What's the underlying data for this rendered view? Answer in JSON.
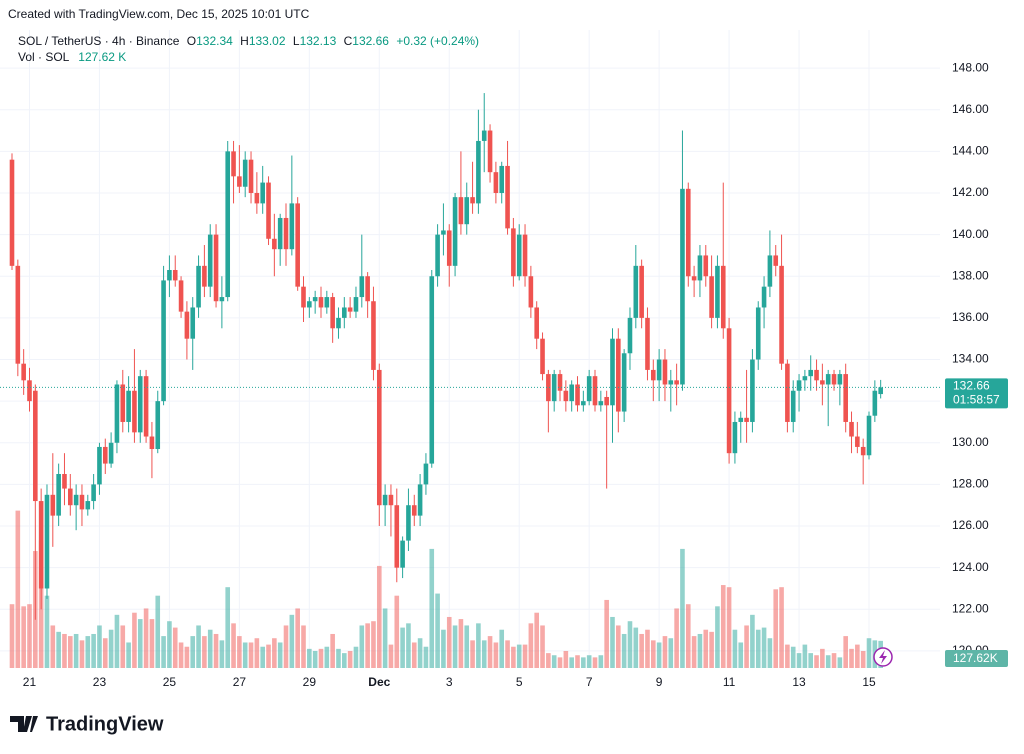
{
  "header": {
    "watermark": "Created with TradingView.com, Dec 15, 2025 10:01 UTC"
  },
  "chart_data": {
    "type": "candlestick",
    "legend": {
      "symbol": "SOL / TetherUS · 4h · Binance",
      "letters": [
        "O",
        "H",
        "L",
        "C"
      ],
      "change": "+0.32 (+0.24%)",
      "volume_title": "Vol · SOL",
      "volume_value": "127.62 K"
    },
    "categories": [
      null,
      null,
      null,
      "21",
      null,
      null,
      null,
      null,
      null,
      null,
      null,
      null,
      null,
      null,
      null,
      "23",
      null,
      null,
      null,
      null,
      null,
      null,
      null,
      null,
      null,
      null,
      null,
      "25",
      null,
      null,
      null,
      null,
      null,
      null,
      null,
      null,
      null,
      null,
      null,
      "27",
      null,
      null,
      null,
      null,
      null,
      null,
      null,
      null,
      null,
      null,
      null,
      "29",
      null,
      null,
      null,
      null,
      null,
      null,
      null,
      null,
      null,
      null,
      null,
      "Dec",
      null,
      null,
      null,
      null,
      null,
      null,
      null,
      null,
      null,
      null,
      null,
      "3",
      null,
      null,
      null,
      null,
      null,
      null,
      null,
      null,
      null,
      null,
      null,
      "5",
      null,
      null,
      null,
      null,
      null,
      null,
      null,
      null,
      null,
      null,
      null,
      "7",
      null,
      null,
      null,
      null,
      null,
      null,
      null,
      null,
      null,
      null,
      null,
      "9",
      null,
      null,
      null,
      null,
      null,
      null,
      null,
      null,
      null,
      null,
      null,
      "11",
      null,
      null,
      null,
      null,
      null,
      null,
      null,
      null,
      null,
      null,
      null,
      "13",
      null,
      null,
      null,
      null,
      null,
      null,
      null,
      null,
      null,
      null,
      null,
      "15",
      null,
      null
    ],
    "open": [
      143.6,
      138.5,
      133.8,
      133.0,
      132.5,
      127.2,
      123.0,
      127.5,
      126.5,
      128.5,
      127.8,
      127.0,
      127.5,
      126.8,
      127.2,
      128.0,
      129.8,
      129.0,
      130.0,
      132.8,
      131.0,
      132.5,
      130.5,
      133.2,
      130.3,
      129.7,
      132.0,
      137.8,
      138.3,
      137.8,
      136.3,
      135.0,
      136.5,
      138.5,
      137.5,
      140.0,
      136.8,
      137.0,
      144.0,
      142.8,
      142.3,
      143.6,
      142.0,
      141.5,
      142.5,
      139.8,
      139.3,
      140.8,
      139.3,
      141.5,
      137.5,
      136.5,
      136.8,
      137.0,
      136.5,
      137.0,
      135.5,
      136.0,
      136.5,
      136.3,
      137.0,
      138.0,
      136.8,
      133.5,
      127.0,
      127.5,
      127.0,
      124.0,
      125.3,
      127.0,
      126.5,
      128.0,
      129.0,
      138.0,
      140.0,
      140.2,
      138.5,
      141.8,
      140.5,
      141.8,
      141.5,
      144.5,
      145.0,
      143.0,
      142.0,
      143.3,
      140.3,
      138.0,
      140.0,
      138.0,
      136.5,
      135.0,
      133.3,
      132.0,
      133.3,
      132.5,
      132.0,
      132.8,
      131.8,
      132.0,
      133.2,
      131.8,
      132.2,
      131.8,
      135.0,
      131.5,
      134.3,
      136.0,
      138.5,
      136.0,
      133.5,
      133.0,
      134.0,
      132.8,
      133.0,
      132.8,
      142.2,
      138.0,
      137.8,
      139.0,
      138.0,
      136.0,
      138.5,
      135.5,
      129.5,
      131.0,
      131.2,
      131.0,
      134.0,
      136.5,
      137.5,
      139.0,
      138.5,
      133.8,
      131.0,
      132.5,
      133.0,
      133.2,
      133.5,
      133.0,
      132.8,
      133.3,
      132.8,
      133.3,
      131.0,
      130.3,
      129.8,
      129.4,
      131.3,
      132.34
    ],
    "high": [
      143.9,
      138.8,
      134.5,
      133.6,
      132.8,
      127.8,
      128.0,
      129.5,
      129.0,
      129.5,
      128.5,
      128.0,
      128.0,
      127.5,
      128.5,
      130.0,
      130.2,
      130.5,
      133.0,
      133.5,
      133.2,
      134.5,
      133.5,
      133.5,
      131.0,
      132.5,
      138.5,
      139.0,
      139.0,
      138.0,
      136.8,
      137.0,
      139.0,
      139.5,
      140.5,
      140.5,
      138.0,
      144.5,
      144.5,
      144.3,
      144.0,
      144.0,
      143.0,
      143.3,
      142.8,
      141.0,
      141.0,
      141.5,
      143.8,
      141.8,
      138.0,
      137.0,
      137.3,
      137.5,
      137.3,
      137.2,
      136.5,
      137.0,
      137.0,
      137.5,
      140.0,
      138.2,
      137.5,
      133.8,
      128.0,
      128.0,
      127.8,
      125.5,
      127.8,
      127.5,
      128.5,
      129.5,
      138.3,
      140.5,
      141.5,
      140.5,
      142.0,
      144.0,
      142.5,
      143.5,
      146.0,
      146.8,
      145.3,
      143.5,
      143.5,
      144.5,
      140.8,
      140.5,
      140.5,
      138.5,
      136.8,
      135.3,
      133.5,
      133.5,
      133.5,
      133.0,
      133.0,
      133.2,
      132.5,
      133.5,
      133.5,
      132.5,
      132.5,
      135.5,
      135.5,
      134.5,
      136.5,
      139.5,
      138.8,
      136.5,
      134.0,
      134.5,
      134.5,
      133.5,
      133.8,
      145.0,
      142.5,
      138.5,
      139.5,
      139.5,
      139.0,
      139.0,
      142.5,
      136.0,
      131.5,
      131.5,
      133.5,
      134.5,
      136.8,
      138.0,
      140.2,
      139.5,
      140.0,
      134.0,
      133.0,
      133.3,
      133.5,
      134.2,
      134.0,
      133.8,
      133.5,
      133.5,
      133.5,
      133.8,
      131.5,
      131.0,
      130.2,
      131.5,
      133.0,
      133.02
    ],
    "low": [
      138.3,
      133.2,
      132.3,
      131.5,
      121.5,
      122.0,
      122.5,
      125.0,
      126.0,
      127.0,
      126.5,
      125.8,
      126.0,
      126.5,
      126.8,
      127.5,
      128.5,
      128.8,
      129.5,
      130.5,
      130.5,
      130.0,
      130.0,
      130.0,
      128.3,
      129.5,
      131.8,
      137.0,
      137.5,
      136.0,
      134.0,
      133.5,
      136.0,
      137.0,
      137.0,
      136.5,
      135.5,
      136.8,
      141.5,
      142.0,
      141.8,
      141.5,
      141.0,
      141.0,
      139.5,
      138.0,
      138.5,
      138.5,
      139.0,
      137.3,
      135.8,
      136.0,
      136.2,
      136.0,
      136.2,
      134.8,
      135.0,
      135.5,
      136.0,
      136.0,
      136.5,
      136.0,
      133.0,
      126.0,
      126.0,
      125.5,
      123.3,
      123.5,
      124.8,
      126.0,
      126.0,
      127.5,
      128.8,
      137.5,
      139.0,
      137.5,
      138.0,
      140.0,
      140.0,
      141.0,
      141.0,
      143.0,
      142.5,
      141.5,
      141.5,
      140.0,
      137.5,
      137.8,
      137.5,
      136.0,
      134.5,
      133.0,
      130.5,
      131.5,
      132.0,
      131.5,
      131.5,
      131.5,
      131.5,
      131.8,
      131.5,
      131.5,
      127.8,
      130.0,
      130.5,
      131.0,
      133.5,
      135.5,
      135.5,
      133.0,
      132.0,
      132.0,
      132.0,
      131.5,
      131.8,
      132.5,
      137.5,
      137.0,
      137.0,
      137.5,
      135.5,
      135.5,
      135.0,
      129.0,
      129.0,
      130.0,
      130.0,
      130.5,
      133.5,
      135.5,
      137.0,
      138.0,
      133.5,
      130.5,
      130.5,
      131.5,
      132.5,
      132.5,
      132.5,
      131.8,
      130.8,
      132.5,
      131.8,
      130.5,
      129.5,
      129.5,
      128.0,
      129.2,
      131.0,
      132.13
    ],
    "close": [
      138.5,
      133.8,
      133.0,
      132.0,
      127.2,
      123.0,
      127.5,
      126.5,
      128.5,
      127.8,
      127.0,
      127.5,
      126.8,
      127.2,
      128.0,
      129.8,
      129.0,
      130.0,
      132.8,
      131.0,
      132.5,
      130.5,
      133.2,
      130.3,
      129.7,
      132.0,
      137.8,
      138.3,
      137.8,
      136.3,
      135.0,
      136.5,
      138.5,
      137.5,
      140.0,
      136.8,
      137.0,
      144.0,
      142.8,
      142.3,
      143.6,
      142.0,
      141.5,
      142.5,
      139.8,
      139.3,
      140.8,
      139.3,
      141.5,
      137.5,
      136.5,
      136.8,
      137.0,
      136.5,
      137.0,
      135.5,
      136.0,
      136.5,
      136.3,
      137.0,
      138.0,
      136.8,
      133.5,
      127.0,
      127.5,
      127.0,
      124.0,
      125.3,
      127.0,
      126.5,
      128.0,
      129.0,
      138.0,
      140.0,
      140.2,
      138.5,
      141.8,
      140.5,
      141.8,
      141.5,
      144.5,
      145.0,
      143.0,
      142.0,
      143.3,
      140.3,
      138.0,
      140.0,
      138.0,
      136.5,
      135.0,
      133.3,
      132.0,
      133.3,
      132.5,
      132.0,
      132.8,
      131.8,
      132.0,
      133.2,
      131.8,
      132.0,
      131.8,
      135.0,
      131.5,
      134.3,
      136.0,
      138.5,
      136.0,
      133.5,
      133.0,
      134.0,
      132.8,
      133.0,
      132.8,
      142.2,
      138.0,
      137.8,
      139.0,
      138.0,
      136.0,
      138.5,
      135.5,
      129.5,
      131.0,
      131.2,
      131.0,
      134.0,
      136.5,
      137.5,
      139.0,
      138.5,
      133.8,
      131.0,
      132.5,
      133.0,
      133.2,
      133.5,
      133.0,
      132.8,
      133.3,
      132.8,
      133.3,
      131.0,
      130.3,
      129.8,
      129.4,
      131.3,
      132.5,
      132.66
    ],
    "volume": [
      300,
      740,
      290,
      300,
      550,
      600,
      340,
      200,
      170,
      160,
      150,
      160,
      130,
      150,
      160,
      200,
      140,
      180,
      250,
      200,
      120,
      260,
      230,
      280,
      230,
      340,
      150,
      220,
      190,
      120,
      100,
      150,
      200,
      150,
      180,
      160,
      130,
      380,
      210,
      150,
      120,
      120,
      140,
      100,
      110,
      140,
      120,
      200,
      250,
      280,
      200,
      90,
      80,
      90,
      100,
      160,
      90,
      70,
      80,
      100,
      200,
      210,
      220,
      480,
      280,
      110,
      340,
      190,
      210,
      120,
      140,
      100,
      560,
      350,
      180,
      240,
      200,
      230,
      200,
      130,
      210,
      130,
      150,
      120,
      180,
      130,
      100,
      110,
      110,
      210,
      260,
      200,
      70,
      60,
      50,
      80,
      50,
      60,
      50,
      60,
      50,
      60,
      320,
      240,
      200,
      160,
      220,
      190,
      160,
      180,
      130,
      120,
      150,
      140,
      280,
      560,
      300,
      150,
      160,
      180,
      170,
      290,
      390,
      380,
      180,
      120,
      200,
      250,
      180,
      190,
      140,
      370,
      380,
      110,
      100,
      70,
      110,
      70,
      60,
      90,
      60,
      70,
      50,
      150,
      90,
      110,
      80,
      140,
      130,
      127.62
    ],
    "volume_tag": "127.62K",
    "countdown": "01:58:57",
    "up_color": "#26a69a",
    "down_color": "#ef5350",
    "ylim": [
      119.18,
      149.83
    ],
    "volume_lim": [
      0,
      3000
    ],
    "yticks": [
      {
        "value": 120,
        "label": "120.00"
      },
      {
        "value": 122,
        "label": "122.00"
      },
      {
        "value": 124,
        "label": "124.00"
      },
      {
        "value": 126,
        "label": "126.00"
      },
      {
        "value": 128,
        "label": "128.00"
      },
      {
        "value": 130,
        "label": "130.00"
      },
      {
        "value": 132,
        "label": "132.00"
      },
      {
        "value": 134,
        "label": "134.00"
      },
      {
        "value": 136,
        "label": "136.00"
      },
      {
        "value": 138,
        "label": "138.00"
      },
      {
        "value": 140,
        "label": "140.00"
      },
      {
        "value": 142,
        "label": "142.00"
      },
      {
        "value": 144,
        "label": "144.00"
      },
      {
        "value": 146,
        "label": "146.00"
      },
      {
        "value": 148,
        "label": "148.00"
      }
    ],
    "grid": true
  },
  "footer": {
    "brand": "TradingView"
  }
}
